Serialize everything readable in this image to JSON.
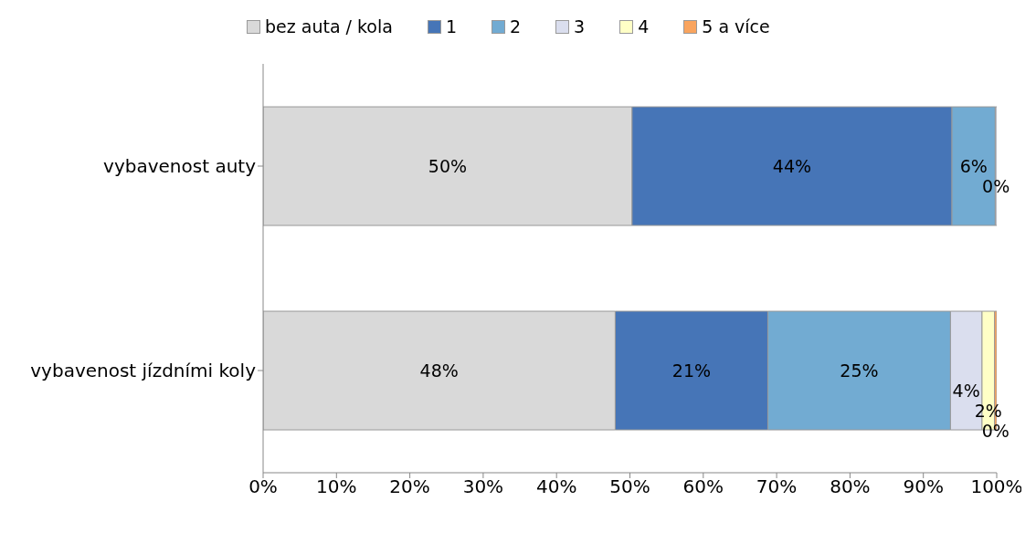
{
  "chart_data": {
    "type": "bar",
    "orientation": "horizontal",
    "stacked": true,
    "categories": [
      "vybavenost auty",
      "vybavenost jízdními koly"
    ],
    "series": [
      {
        "name": "bez auta / kola",
        "color": "#d9d9d9",
        "values": [
          50.3,
          48
        ],
        "value_labels": [
          "50%",
          "48%"
        ]
      },
      {
        "name": "1",
        "color": "#4675b7",
        "values": [
          43.6,
          20.8
        ],
        "value_labels": [
          "44%",
          "21%"
        ]
      },
      {
        "name": "2",
        "color": "#72abd2",
        "values": [
          5.9,
          24.9
        ],
        "value_labels": [
          "6%",
          "25%"
        ]
      },
      {
        "name": "3",
        "color": "#dadeee",
        "values": [
          0.2,
          4.3
        ],
        "value_labels": [
          "0%",
          "4%"
        ]
      },
      {
        "name": "4",
        "color": "#ffffc6",
        "values": [
          null,
          1.7
        ],
        "value_labels": [
          null,
          "2%"
        ]
      },
      {
        "name": "5 a více",
        "color": "#f9a45e",
        "values": [
          null,
          0.3
        ],
        "value_labels": [
          null,
          "0%"
        ]
      }
    ],
    "xlim": [
      0,
      100
    ],
    "xticks": [
      {
        "value": 0,
        "label": "0%"
      },
      {
        "value": 10,
        "label": "10%"
      },
      {
        "value": 20,
        "label": "20%"
      },
      {
        "value": 30,
        "label": "30%"
      },
      {
        "value": 40,
        "label": "40%"
      },
      {
        "value": 50,
        "label": "50%"
      },
      {
        "value": 60,
        "label": "60%"
      },
      {
        "value": 70,
        "label": "70%"
      },
      {
        "value": 80,
        "label": "80%"
      },
      {
        "value": 90,
        "label": "90%"
      },
      {
        "value": 100,
        "label": "100%"
      }
    ],
    "grid": false,
    "legend": "top"
  }
}
